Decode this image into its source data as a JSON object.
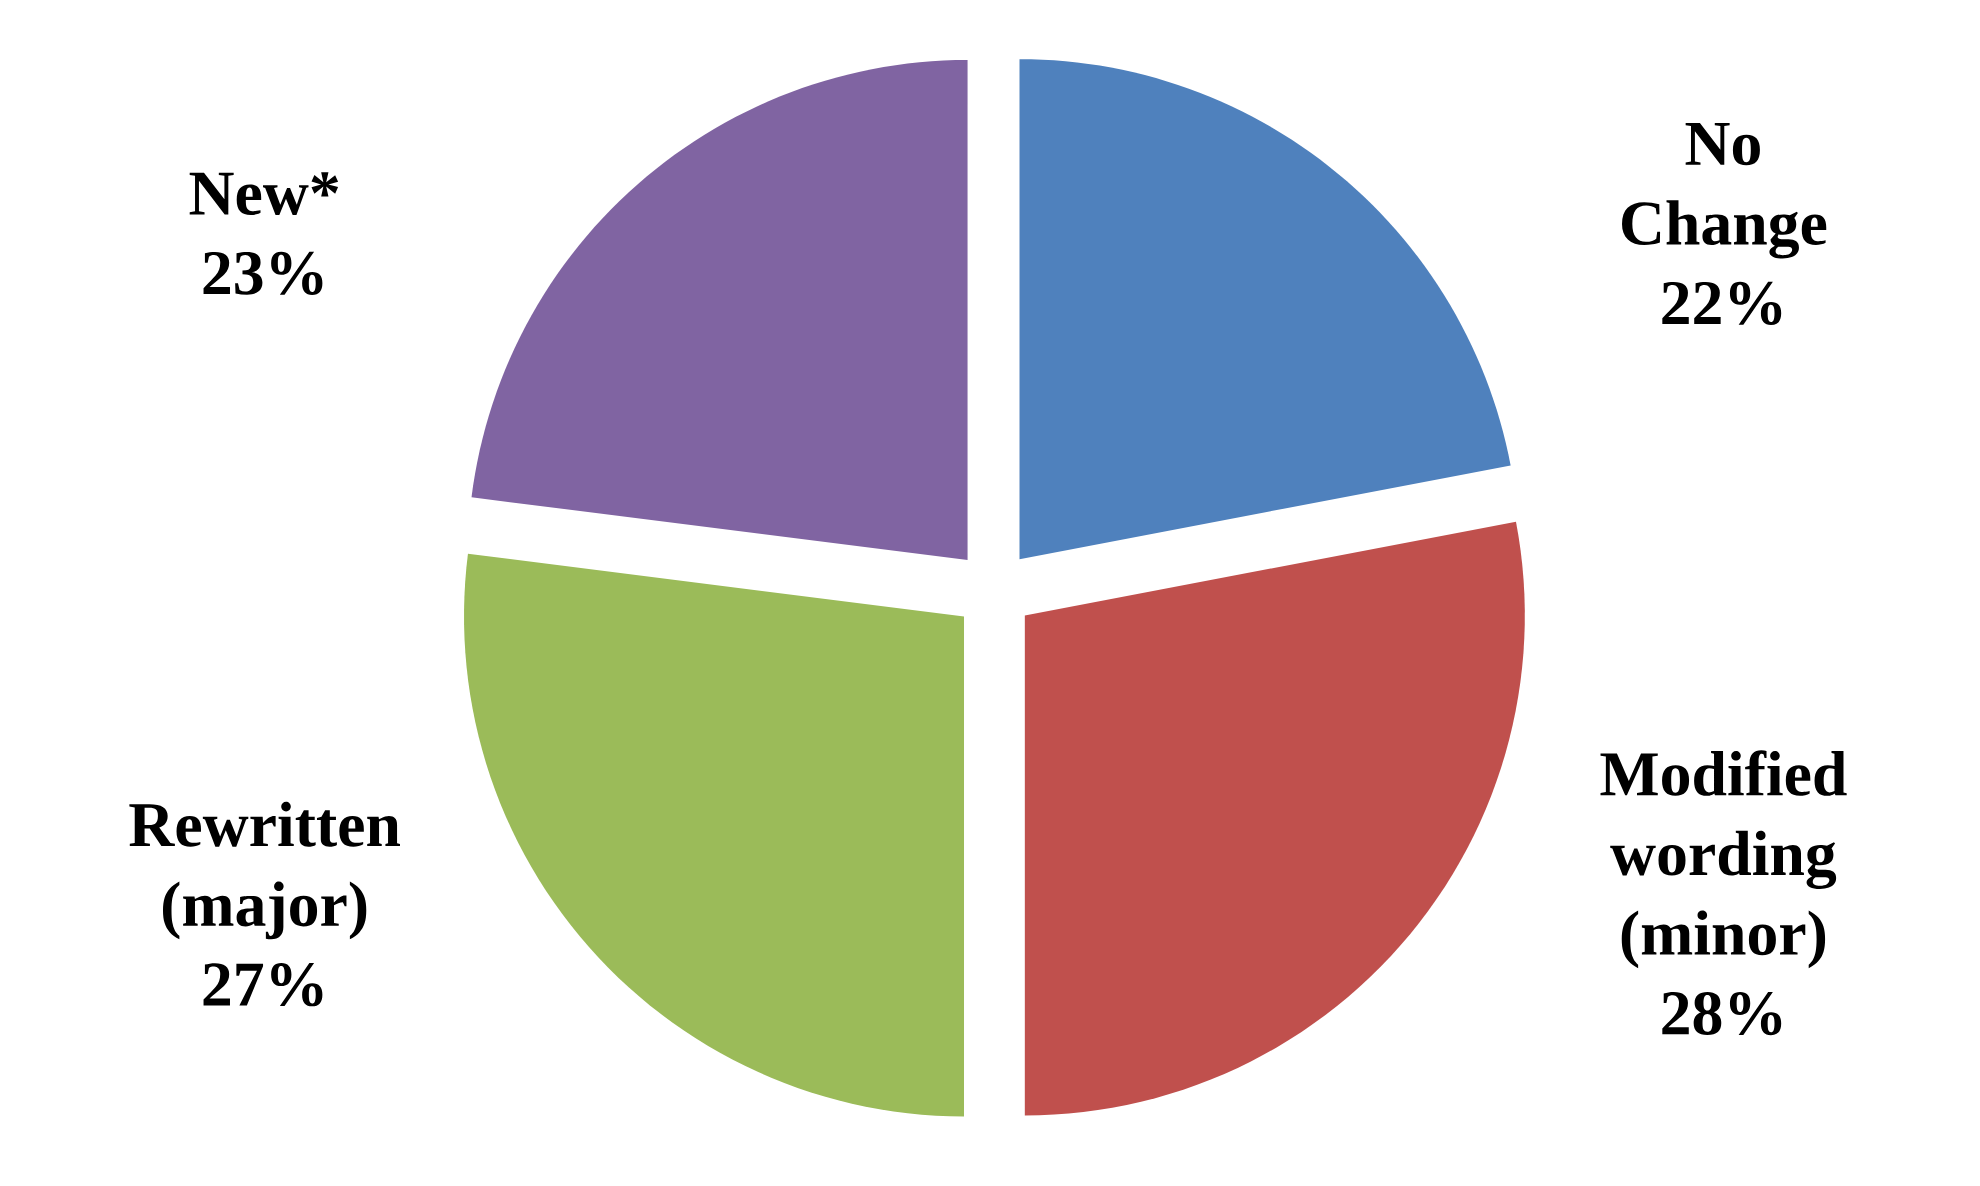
{
  "chart_data": {
    "type": "pie",
    "categories": [
      "No Change",
      "Modified wording (minor)",
      "Rewritten (major)",
      "New*"
    ],
    "values": [
      22,
      28,
      27,
      23
    ],
    "colors": [
      "#4f81bd",
      "#c0504d",
      "#9bbb59",
      "#8064a2"
    ],
    "value_labels": [
      "22%",
      "28%",
      "27%",
      "23%"
    ]
  }
}
